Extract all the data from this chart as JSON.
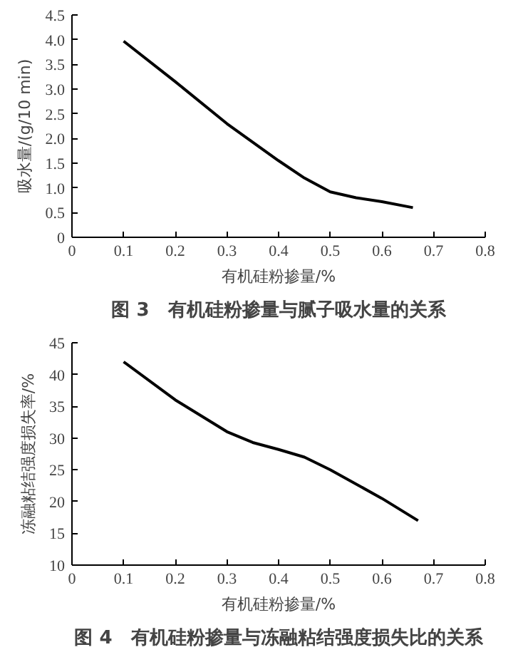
{
  "chart_data": [
    {
      "type": "line",
      "title": "图 3　有机硅粉掺量与腻子吸水量的关系",
      "xlabel": "有机硅粉掺量/%",
      "ylabel": "吸水量/(g/10 min)",
      "x": [
        0.1,
        0.2,
        0.3,
        0.4,
        0.45,
        0.5,
        0.55,
        0.6,
        0.66
      ],
      "series": [
        {
          "color": "#000000",
          "values": [
            3.97,
            3.15,
            2.3,
            1.55,
            1.2,
            0.92,
            0.8,
            0.72,
            0.6
          ]
        }
      ],
      "xlim": [
        0,
        0.8
      ],
      "xticks": [
        0,
        0.1,
        0.2,
        0.3,
        0.4,
        0.5,
        0.6,
        0.7,
        0.8
      ],
      "ylim": [
        0,
        4.5
      ],
      "yticks": [
        0,
        0.5,
        {
          "value": 1,
          "label": "1.0"
        },
        1.5,
        {
          "value": 2,
          "label": "2.0"
        },
        2.5,
        {
          "value": 3,
          "label": "3.0"
        },
        3.5,
        {
          "value": 4,
          "label": "4.0"
        },
        4.5
      ],
      "grid": false
    },
    {
      "type": "line",
      "title": "图 4　有机硅粉掺量与冻融粘结强度损失比的关系",
      "xlabel": "有机硅粉掺量/%",
      "ylabel": "冻融粘结强度损失率/%",
      "x": [
        0.1,
        0.2,
        0.3,
        0.35,
        0.4,
        0.45,
        0.5,
        0.6,
        0.67
      ],
      "series": [
        {
          "color": "#000000",
          "values": [
            42,
            36,
            31,
            29.3,
            28.2,
            27,
            25,
            20.5,
            17
          ]
        }
      ],
      "xlim": [
        0,
        0.8
      ],
      "xticks": [
        0,
        0.1,
        0.2,
        0.3,
        0.4,
        0.5,
        0.6,
        0.7,
        0.8
      ],
      "ylim": [
        10,
        45
      ],
      "yticks": [
        10,
        15,
        20,
        25,
        30,
        35,
        40,
        45
      ],
      "grid": false
    }
  ]
}
